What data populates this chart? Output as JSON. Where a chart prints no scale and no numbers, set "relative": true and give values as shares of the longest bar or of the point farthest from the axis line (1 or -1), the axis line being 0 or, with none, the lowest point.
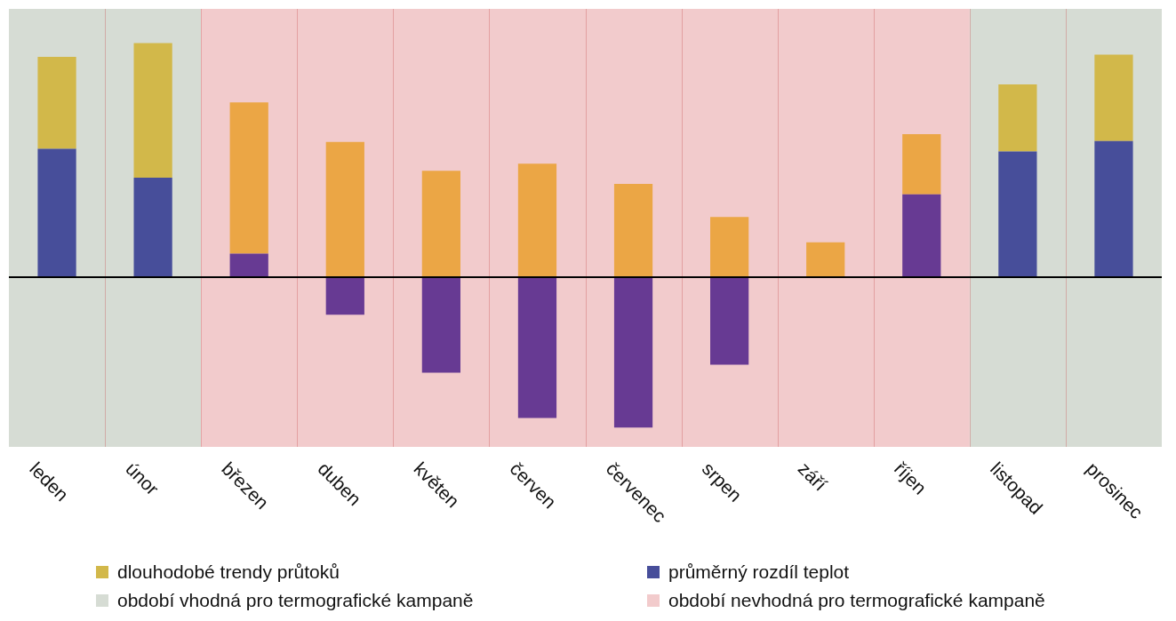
{
  "chart_data": {
    "type": "bar",
    "stacked": true,
    "relative": true,
    "grid": "x",
    "legend": "bottom",
    "categories": [
      "leden",
      "únor",
      "březen",
      "duben",
      "květen",
      "červen",
      "červenec",
      "srpen",
      "září",
      "říjen",
      "listopad",
      "prosinec"
    ],
    "series": [
      {
        "name": "průměrný rozdíl teplot",
        "color": "#474e9a",
        "colors": [
          "#474e9a",
          "#474e9a",
          "#673a93",
          "#673a93",
          "#673a93",
          "#673a93",
          "#673a93",
          "#673a93",
          "#673a93",
          "#673a93",
          "#474e9a",
          "#474e9a"
        ],
        "values": [
          0.549,
          0.425,
          0.101,
          -0.16,
          -0.407,
          -0.601,
          -0.642,
          -0.373,
          0,
          0.354,
          0.537,
          0.582
        ]
      },
      {
        "name": "dlouhodobé trendy průtoků",
        "color": "#d2b84a",
        "colors": [
          "#d2b84a",
          "#d2b84a",
          "#eba645",
          "#eba645",
          "#eba645",
          "#eba645",
          "#eba645",
          "#eba645",
          "#eba645",
          "#eba645",
          "#d2b84a",
          "#d2b84a"
        ],
        "values": [
          0.392,
          0.575,
          0.646,
          0.578,
          0.455,
          0.485,
          0.399,
          0.257,
          0.149,
          0.257,
          0.287,
          0.369
        ]
      }
    ],
    "bands": [
      {
        "axis": "x",
        "from": "leden",
        "to": "únor",
        "label": "období vhodná pro termografické kampaně",
        "color": "#d6dcd4"
      },
      {
        "axis": "x",
        "from": "březen",
        "to": "říjen",
        "label": "období nevhodná pro termografické kampaně",
        "color": "#f2cbcc"
      },
      {
        "axis": "x",
        "from": "listopad",
        "to": "prosinec",
        "color": "#d6dcd4"
      }
    ]
  }
}
